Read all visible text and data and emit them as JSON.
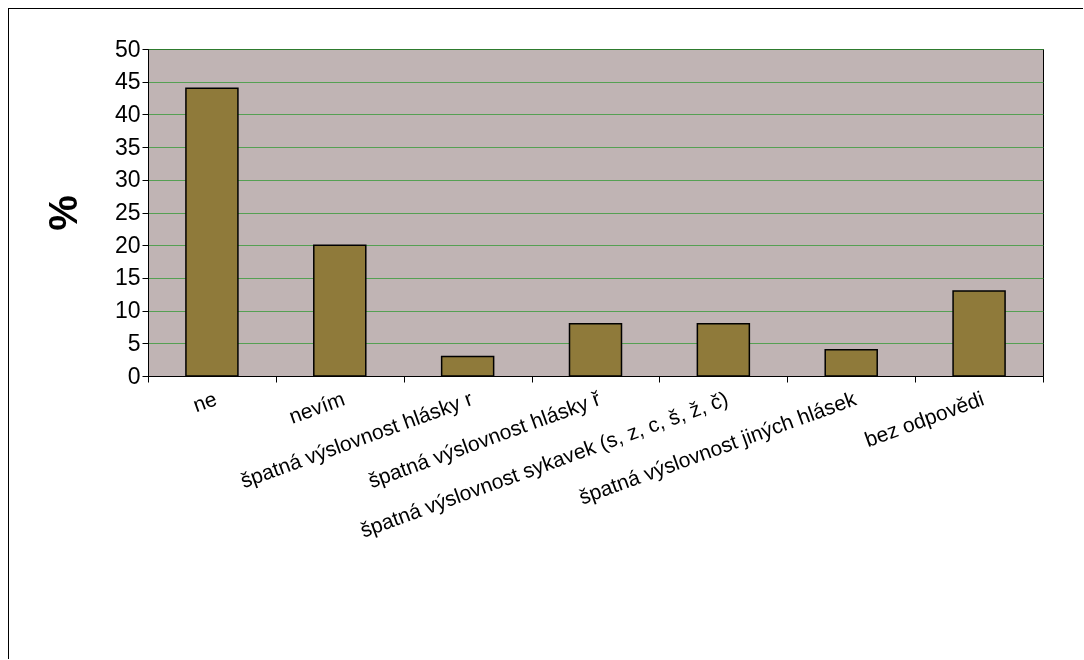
{
  "chart_data": {
    "type": "bar",
    "ylabel": "%",
    "categories": [
      "ne",
      "nevím",
      "špatná výslovnost hlásky r",
      "špatná výslovnost hlásky ř",
      "špatná výslovnost sykavek (s, z, c, š, ž, č)",
      "špatná výslovnost jiných hlásek",
      "bez odpovědi"
    ],
    "values": [
      44,
      20,
      3,
      8,
      8,
      4,
      13
    ],
    "color": "#8f7a3a",
    "ylim": [
      0,
      50
    ],
    "yticks": [
      0,
      5,
      10,
      15,
      20,
      25,
      30,
      35,
      40,
      45,
      50
    ],
    "grid": "y"
  }
}
